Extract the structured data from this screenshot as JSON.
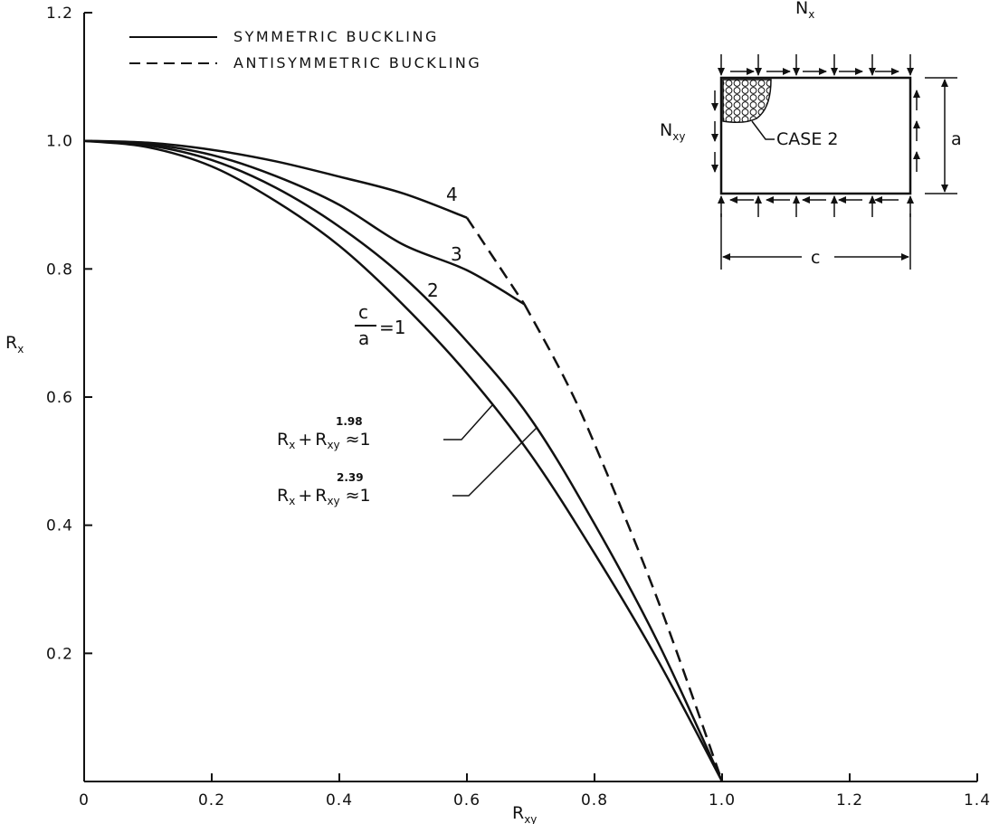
{
  "chart_data": {
    "type": "line",
    "title": "",
    "xlabel": "R",
    "xlabel_sub": "xy",
    "ylabel": "R",
    "ylabel_sub": "x",
    "xlim": [
      0,
      1.4
    ],
    "ylim": [
      0,
      1.2
    ],
    "x_ticks": [
      0,
      0.2,
      0.4,
      0.6,
      0.8,
      1.0,
      1.2,
      1.4
    ],
    "x_tick_labels": [
      "0",
      "0.2",
      "0.4",
      "0.6",
      "0.8",
      "1.0",
      "1.2",
      "1.4"
    ],
    "y_ticks": [
      0.2,
      0.4,
      0.6,
      0.8,
      1.0,
      1.2
    ],
    "y_tick_labels": [
      "0.2",
      "0.4",
      "0.6",
      "0.8",
      "1.0",
      "1.2"
    ],
    "grid": false,
    "legend": {
      "placement": "top-left",
      "entries": [
        {
          "label": "SYMMETRIC BUCKLING",
          "style": "solid"
        },
        {
          "label": "ANTISYMMETRIC BUCKLING",
          "style": "dashed"
        }
      ]
    },
    "series": [
      {
        "ratio": "1",
        "label_parts": {
          "numerator": "c",
          "denominator": "a",
          "relation": "=1"
        },
        "solid": [
          [
            0,
            1.0
          ],
          [
            0.1,
            0.99
          ],
          [
            0.2,
            0.96
          ],
          [
            0.3,
            0.906
          ],
          [
            0.4,
            0.836
          ],
          [
            0.5,
            0.744
          ],
          [
            0.6,
            0.637
          ],
          [
            0.7,
            0.51
          ],
          [
            0.8,
            0.356
          ],
          [
            0.9,
            0.188
          ],
          [
            1.0,
            0.0
          ]
        ],
        "dashed": []
      },
      {
        "ratio": "2",
        "solid": [
          [
            0,
            1.0
          ],
          [
            0.1,
            0.993
          ],
          [
            0.2,
            0.97
          ],
          [
            0.3,
            0.927
          ],
          [
            0.4,
            0.866
          ],
          [
            0.5,
            0.788
          ],
          [
            0.6,
            0.687
          ],
          [
            0.7,
            0.566
          ],
          [
            0.8,
            0.402
          ],
          [
            0.9,
            0.216
          ],
          [
            1.0,
            0.0
          ]
        ],
        "dashed": []
      },
      {
        "ratio": "3",
        "solid": [
          [
            0,
            1.0
          ],
          [
            0.1,
            0.995
          ],
          [
            0.2,
            0.978
          ],
          [
            0.3,
            0.945
          ],
          [
            0.4,
            0.9
          ],
          [
            0.5,
            0.838
          ],
          [
            0.6,
            0.798
          ],
          [
            0.69,
            0.745
          ]
        ],
        "dashed": [
          [
            0.69,
            0.745
          ],
          [
            0.75,
            0.635
          ],
          [
            0.8,
            0.527
          ],
          [
            0.9,
            0.281
          ],
          [
            1.0,
            0.0
          ]
        ]
      },
      {
        "ratio": "4",
        "solid": [
          [
            0,
            1.0
          ],
          [
            0.1,
            0.997
          ],
          [
            0.2,
            0.986
          ],
          [
            0.3,
            0.968
          ],
          [
            0.4,
            0.944
          ],
          [
            0.5,
            0.918
          ],
          [
            0.6,
            0.88
          ]
        ],
        "dashed": [
          [
            0.6,
            0.88
          ],
          [
            0.69,
            0.745
          ]
        ]
      }
    ],
    "annotations": [
      {
        "base": "R",
        "base_sub": "x",
        "plus": "+",
        "term": "R",
        "term_sub": "xy",
        "exponent": "1.98",
        "approx": "≈1"
      },
      {
        "base": "R",
        "base_sub": "x",
        "plus": "+",
        "term": "R",
        "term_sub": "xy",
        "exponent": "2.39",
        "approx": "≈1"
      }
    ]
  },
  "inset": {
    "load_top": "N",
    "load_top_sub": "x",
    "load_side": "N",
    "load_side_sub": "xy",
    "case_label": "CASE 2",
    "height_label": "a",
    "width_label": "c"
  }
}
